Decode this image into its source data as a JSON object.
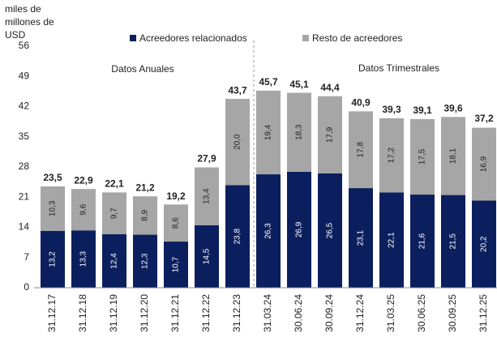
{
  "chart_data": {
    "type": "stacked_bar",
    "ylabel": [
      "miles de",
      "millones de",
      "USD"
    ],
    "annotations": [
      "Datos Anuales",
      "Datos Trimestrales"
    ],
    "categories": [
      "31.12.17",
      "31.12.18",
      "31.12.19",
      "31.12.20",
      "31.12.21",
      "31.12.22",
      "31.12.23",
      "31.03.24",
      "30.06.24",
      "30.09.24",
      "31.12.24",
      "31.03.25",
      "30.06.25",
      "30.09.25",
      "31.12.25"
    ],
    "series": [
      {
        "name": "Acreedores relacionados",
        "color": "#0b1f5e",
        "values": [
          13.2,
          13.3,
          12.4,
          12.3,
          10.7,
          14.5,
          23.8,
          26.3,
          26.9,
          26.5,
          23.1,
          22.1,
          21.6,
          21.5,
          20.2
        ],
        "value_labels": [
          "13,2",
          "13,3",
          "12,4",
          "12,3",
          "10,7",
          "14,5",
          "23,8",
          "26,3",
          "26,9",
          "26,5",
          "23,1",
          "22,1",
          "21,6",
          "21,5",
          "20,2"
        ]
      },
      {
        "name": "Resto de acreedores",
        "color": "#a6a6a6",
        "values": [
          10.3,
          9.6,
          9.7,
          8.9,
          8.6,
          13.4,
          20.0,
          19.4,
          18.3,
          17.9,
          17.8,
          17.2,
          17.5,
          18.1,
          16.9
        ],
        "value_labels": [
          "10,3",
          "9,6",
          "9,7",
          "8,9",
          "8,6",
          "13,4",
          "20,0",
          "19,4",
          "18,3",
          "17,9",
          "17,8",
          "17,2",
          "17,5",
          "18,1",
          "16,9"
        ]
      }
    ],
    "totals": [
      23.5,
      22.9,
      22.1,
      21.2,
      19.2,
      27.9,
      43.7,
      45.7,
      45.1,
      44.4,
      40.9,
      39.3,
      39.1,
      39.6,
      37.2
    ],
    "total_labels": [
      "23,5",
      "22,9",
      "22,1",
      "21,2",
      "19,2",
      "27,9",
      "43,7",
      "45,7",
      "45,1",
      "44,4",
      "40,9",
      "39,3",
      "39,1",
      "39,6",
      "37,2"
    ],
    "ylim": [
      0,
      56
    ],
    "yticks": [
      0,
      7,
      14,
      21,
      28,
      35,
      42,
      49,
      56
    ]
  }
}
